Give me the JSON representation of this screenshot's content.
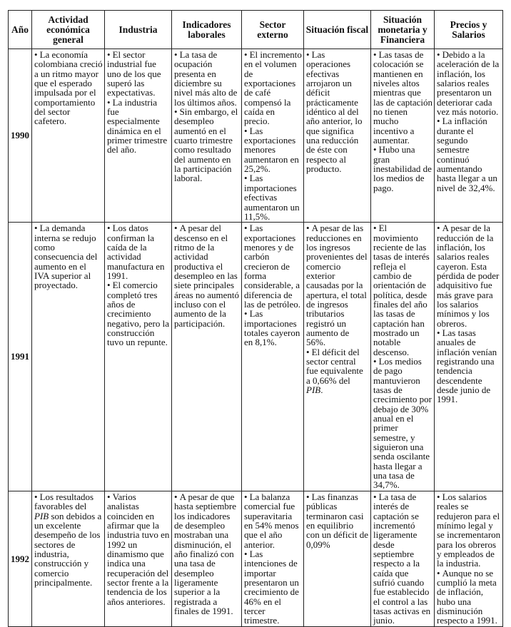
{
  "headers": [
    "Año",
    "Actividad económica general",
    "Industria",
    "Indicadores laborales",
    "Sector externo",
    "Situación fiscal",
    "Situación monetaria y Financiera",
    "Precios y Salarios"
  ],
  "rows": [
    {
      "year": "1990",
      "cells": [
        [
          [
            "La economía colombiana creció a un ritmo mayor que el esperado impulsada por el comportamiento del sector cafetero."
          ]
        ],
        [
          [
            "El sector industrial fue uno de los que superó las expectativas."
          ],
          [
            "La industria fue especialmente dinámica en el primer trimestre del año."
          ]
        ],
        [
          [
            "La tasa de ocupación presenta en diciembre su nivel más alto de los últimos años."
          ],
          [
            "Sin embargo, el desempleo aumentó en el cuarto trimestre como resultado del aumento en la participación laboral."
          ]
        ],
        [
          [
            "El incremento en el volumen de exportaciones de café compensó la caída en precio."
          ],
          [
            "Las exportaciones menores aumentaron en 25,2%."
          ],
          [
            "Las importaciones efectivas aumentaron un 11,5%."
          ]
        ],
        [
          [
            "Las operaciones efectivas arrojaron un déficit prácticamente idéntico al del año anterior, lo que significa una reducción de éste con respecto al producto."
          ]
        ],
        [
          [
            "Las tasas de colocación se mantienen en niveles altos mientras que las de captación no tienen mucho incentivo a aumentar."
          ],
          [
            "Hubo una gran inestabilidad de los medios de pago."
          ]
        ],
        [
          [
            "Debido a la aceleración de la inflación, los salarios reales presentaron un deteriorar cada vez más notorio."
          ],
          [
            "La inflación durante el segundo semestre continuó aumentando hasta llegar a un nivel de 32,4%."
          ]
        ]
      ]
    },
    {
      "year": "1991",
      "cells": [
        [
          [
            "La demanda interna se redujo como consecuencia del aumento en el IVA superior al proyectado."
          ]
        ],
        [
          [
            "Los datos confirman la caída de la actividad manufactura en 1991."
          ],
          [
            "El comercio completó tres años de crecimiento negativo, pero la construcción tuvo un repunte."
          ]
        ],
        [
          [
            "A pesar del descenso en el ritmo de la actividad productiva el desempleo en las siete principales áreas no aumentó incluso con el aumento de la participación."
          ]
        ],
        [
          [
            "Las exportaciones menores y de carbón crecieron de forma considerable, a diferencia de las de petróleo."
          ],
          [
            "Las importaciones totales cayeron en 8,1%."
          ]
        ],
        [
          [
            "A pesar de las reducciones en los ingresos provenientes del comercio exterior causadas por la apertura, el total de ingresos tributarios registró un aumento de 56%."
          ],
          [
            "El déficit del sector central fue equivalente a 0,66% del ",
            {
              "em": "PIB"
            },
            "."
          ]
        ],
        [
          [
            "El movimiento reciente de las tasas de interés refleja el cambio de orientación de política, desde finales del año las tasas de captación han mostrado un notable descenso."
          ],
          [
            "Los medios de pago mantuvieron tasas de crecimiento por debajo de 30% anual en el primer semestre, y siguieron  una senda oscilante hasta llegar a una tasa de 34,7%."
          ]
        ],
        [
          [
            "A pesar de la reducción de la inflación, los salarios reales cayeron. Esta pérdida de poder adquisitivo fue más grave para los salarios mínimos y los obreros."
          ],
          [
            "Las tasas anuales de inflación venían registrando una tendencia descendente desde junio de 1991."
          ]
        ]
      ]
    },
    {
      "year": "1992",
      "cells": [
        [
          [
            "Los resultados favorables del ",
            {
              "em": "PIB"
            },
            " son debidos a un excelente desempeño de los sectores de industria, construcción y comercio principalmente."
          ]
        ],
        [
          [
            "Varios analistas coinciden en afirmar que la industria tuvo en 1992 un dinamismo que indica una recuperación del sector frente a la tendencia de los años anteriores."
          ]
        ],
        [
          [
            "A pesar de que hasta septiembre los indicadores de desempleo mostraban una disminución, el año finalizó con una tasa de desempleo ligeramente superior a la registrada a finales de 1991."
          ]
        ],
        [
          [
            "La balanza comercial fue superavitaria en 54% menos que el año anterior."
          ],
          [
            "Las intenciones de importar presentaron un crecimiento de 46%  en el tercer trimestre."
          ]
        ],
        [
          [
            "Las finanzas públicas terminaron casi en equilibrio con un déficit de 0,09%"
          ]
        ],
        [
          [
            "La tasa de interés de captación se incrementó ligeramente desde septiembre respecto a la caída que sufrió cuando fue establecido el control a las tasas activas en junio."
          ]
        ],
        [
          [
            "Los salarios reales se redujeron para el mínimo legal y se incrementaron para los obreros y empleados de la industria."
          ],
          [
            "Aunque no se cumplió la meta de inflación, hubo una disminución respecto a 1991."
          ]
        ]
      ]
    }
  ],
  "bullet": "•"
}
